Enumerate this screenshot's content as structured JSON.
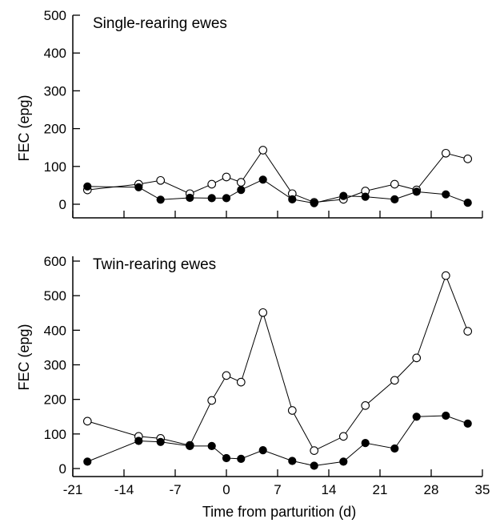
{
  "chart_data": [
    {
      "type": "line",
      "title": "Single-rearing ewes",
      "xlabel": "",
      "ylabel": "FEC (epg)",
      "xlim": [
        -21,
        35
      ],
      "ylim": [
        0,
        500
      ],
      "xticks": [
        -21,
        -14,
        -7,
        0,
        7,
        14,
        21,
        28,
        35
      ],
      "yticks": [
        0,
        100,
        200,
        300,
        400,
        500
      ],
      "x_tick_labels_shown": false,
      "grid": false,
      "series": [
        {
          "marker": "open-circle",
          "x": [
            -19,
            -12,
            -9,
            -5,
            -2,
            0,
            2,
            5,
            9,
            12,
            16,
            19,
            23,
            26,
            30,
            33
          ],
          "y": [
            38,
            53,
            63,
            28,
            53,
            72,
            58,
            143,
            28,
            5,
            13,
            35,
            53,
            38,
            135,
            120
          ]
        },
        {
          "marker": "filled-circle",
          "x": [
            -19,
            -12,
            -9,
            -5,
            -2,
            0,
            2,
            5,
            9,
            12,
            16,
            19,
            23,
            26,
            30,
            33
          ],
          "y": [
            47,
            45,
            12,
            17,
            16,
            16,
            38,
            65,
            13,
            3,
            22,
            20,
            13,
            33,
            26,
            4
          ]
        }
      ]
    },
    {
      "type": "line",
      "title": "Twin-rearing ewes",
      "xlabel": "Time from parturition (d)",
      "ylabel": "FEC (epg)",
      "xlim": [
        -21,
        35
      ],
      "ylim": [
        0,
        600
      ],
      "xticks": [
        -21,
        -14,
        -7,
        0,
        7,
        14,
        21,
        28,
        35
      ],
      "yticks": [
        0,
        100,
        200,
        300,
        400,
        500,
        600
      ],
      "x_tick_labels_shown": true,
      "grid": false,
      "series": [
        {
          "marker": "open-circle",
          "x": [
            -19,
            -12,
            -9,
            -5,
            -2,
            0,
            2,
            5,
            9,
            12,
            16,
            19,
            23,
            26,
            30,
            33
          ],
          "y": [
            137,
            93,
            87,
            67,
            197,
            269,
            250,
            451,
            168,
            52,
            93,
            182,
            255,
            320,
            558,
            397
          ]
        },
        {
          "marker": "filled-circle",
          "x": [
            -19,
            -12,
            -9,
            -5,
            -2,
            0,
            2,
            5,
            9,
            12,
            16,
            19,
            23,
            26,
            30,
            33
          ],
          "y": [
            20,
            80,
            77,
            65,
            65,
            30,
            28,
            53,
            22,
            8,
            20,
            74,
            58,
            150,
            153,
            130
          ]
        }
      ]
    }
  ]
}
